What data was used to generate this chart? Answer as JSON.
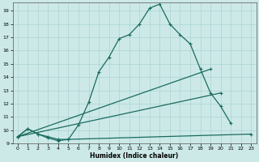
{
  "xlabel": "Humidex (Indice chaleur)",
  "xlim": [
    -0.5,
    23.5
  ],
  "ylim": [
    9.0,
    19.6
  ],
  "yticks": [
    9,
    10,
    11,
    12,
    13,
    14,
    15,
    16,
    17,
    18,
    19
  ],
  "xticks": [
    0,
    1,
    2,
    3,
    4,
    5,
    6,
    7,
    8,
    9,
    10,
    11,
    12,
    13,
    14,
    15,
    16,
    17,
    18,
    19,
    20,
    21,
    22,
    23
  ],
  "background_color": "#cce9e8",
  "grid_color": "#aad4d2",
  "line_color": "#1a6b5e",
  "line_width": 0.9,
  "marker": "+",
  "marker_size": 3.5,
  "lines": [
    {
      "x": [
        0,
        1,
        2,
        3,
        4,
        5,
        6,
        7,
        8,
        9,
        10,
        11,
        12,
        13,
        14,
        15,
        16,
        17,
        18,
        19,
        20,
        21
      ],
      "y": [
        9.5,
        10.1,
        9.7,
        9.4,
        9.2,
        9.3,
        10.4,
        12.1,
        14.4,
        15.5,
        16.9,
        17.2,
        18.0,
        19.2,
        19.5,
        18.0,
        17.2,
        16.5,
        14.6,
        12.8,
        11.8,
        10.5
      ]
    },
    {
      "x": [
        0,
        1,
        2,
        3,
        4,
        5,
        23
      ],
      "y": [
        9.5,
        10.1,
        9.7,
        9.5,
        9.3,
        9.3,
        9.7
      ]
    },
    {
      "x": [
        0,
        19
      ],
      "y": [
        9.5,
        14.6
      ]
    },
    {
      "x": [
        0,
        20
      ],
      "y": [
        9.5,
        12.8
      ]
    }
  ]
}
